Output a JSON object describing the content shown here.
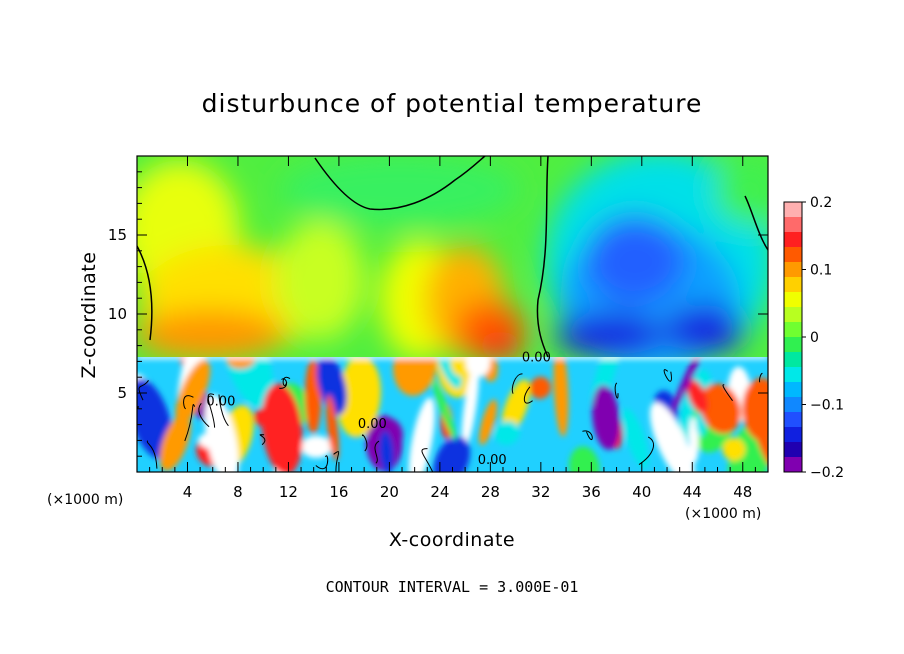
{
  "chart_data": {
    "type": "heatmap",
    "title": "disturbunce of potential temperature",
    "xlabel": "X-coordinate",
    "ylabel": "Z-coordinate",
    "x_unit": "(×1000 m)",
    "x_unit_right": "(×1000 m)",
    "xlim": [
      0,
      50
    ],
    "ylim": [
      0,
      20
    ],
    "x_ticks": [
      4,
      8,
      12,
      16,
      20,
      24,
      28,
      32,
      36,
      40,
      44,
      48
    ],
    "y_ticks": [
      5,
      10,
      15
    ],
    "colorbar": {
      "range": [
        -0.2,
        0.2
      ],
      "tick_labels": [
        "0.2",
        "0.1",
        "0",
        "−0.1",
        "−0.2"
      ],
      "tick_values": [
        0.2,
        0.1,
        0,
        -0.1,
        -0.2
      ],
      "colors": [
        "#ffb0b0",
        "#ff6a6a",
        "#ff2020",
        "#ff5a00",
        "#ff9a00",
        "#ffd000",
        "#f0ff00",
        "#b8ff20",
        "#70ff30",
        "#30f050",
        "#00e8a0",
        "#00e8e8",
        "#00b8ff",
        "#1088ff",
        "#2050ff",
        "#1020e0",
        "#2000b0",
        "#8000b0"
      ]
    },
    "contour_labels": [
      {
        "text": "0.00",
        "x": 5.5,
        "y": 4.2
      },
      {
        "text": "0.00",
        "x": 17.5,
        "y": 2.8
      },
      {
        "text": "0.00",
        "x": 27.0,
        "y": 0.5
      },
      {
        "text": "0.00",
        "x": 30.5,
        "y": 7.0
      }
    ],
    "fields": {
      "upper": [
        {
          "x": 3.5,
          "y": 15.5,
          "value": 0.08,
          "note": "yellow upper-left plume"
        },
        {
          "x": 25.5,
          "y": 11.5,
          "value": 0.12,
          "note": "orange plume"
        },
        {
          "x": 29.0,
          "y": 9.0,
          "value": 0.15,
          "note": "red core"
        },
        {
          "x": 40.0,
          "y": 14.0,
          "value": -0.12,
          "note": "blue plume"
        },
        {
          "x": 37.5,
          "y": 9.5,
          "value": -0.17,
          "note": "deep blue base"
        },
        {
          "x": 44.0,
          "y": 9.5,
          "value": -0.17,
          "note": "deep blue base"
        }
      ],
      "lower_layer_top": 7.3
    },
    "annotation": "CONTOUR INTERVAL = 3.000E-01"
  }
}
